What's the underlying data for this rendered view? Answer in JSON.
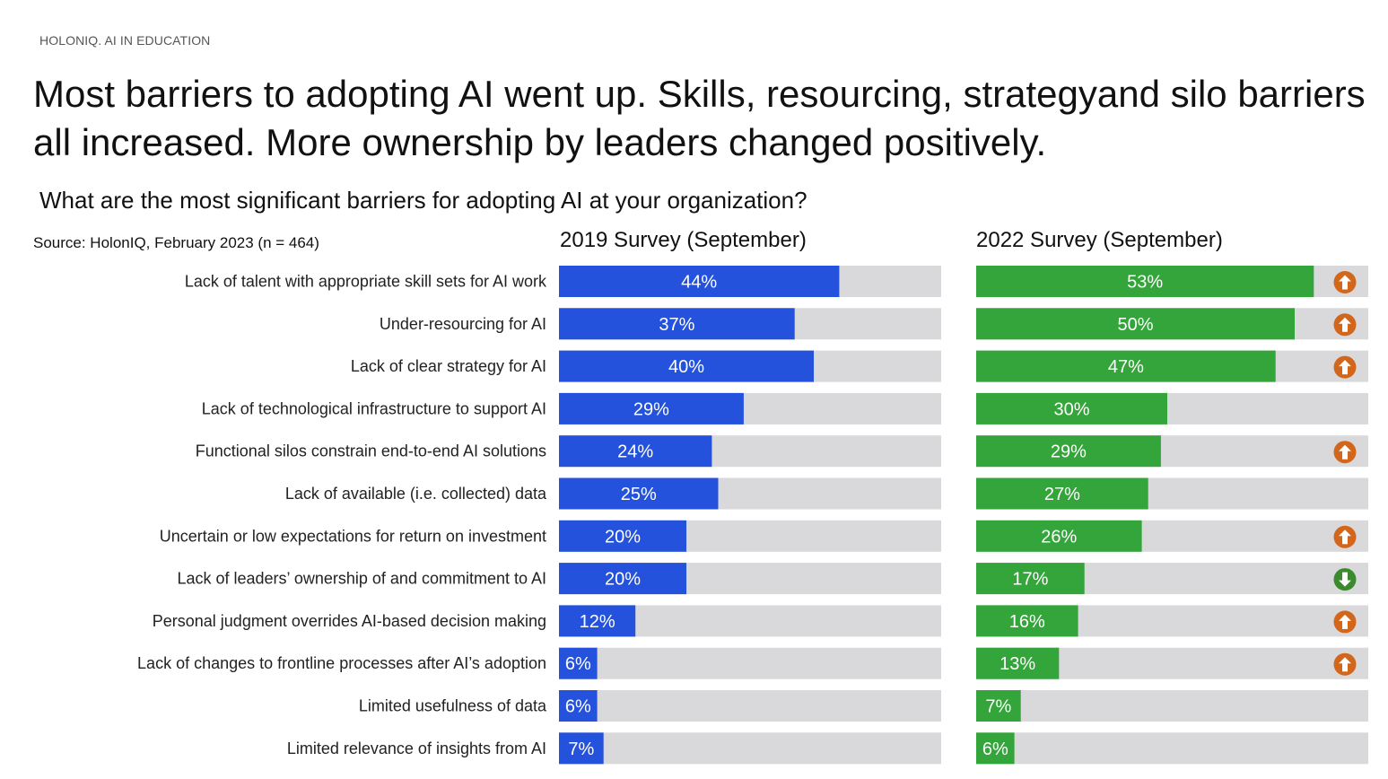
{
  "eyebrow": "HOLONIQ. AI IN EDUCATION",
  "headline": "Most barriers to adopting AI went up. Skills, resourcing, strategyand silo barriers all increased. More ownership by leaders changed positively.",
  "question": "What are the most significant barriers for adopting AI at your organization?",
  "source": "Source: HolonIQ, February 2023 (n = 464)",
  "colors": {
    "series_2019": "#2452dc",
    "series_2022": "#34a53a",
    "track": "#d9d9dc",
    "arrow_up": "#d2671c",
    "arrow_down": "#3b8a2d"
  },
  "chart_data": {
    "type": "bar",
    "orientation": "horizontal",
    "unit": "%",
    "xlim": [
      0,
      100
    ],
    "categories": [
      "Lack of talent with appropriate skill sets for AI work",
      "Under-resourcing for AI",
      "Lack of clear strategy for AI",
      "Lack of technological infrastructure to support AI",
      "Functional silos constrain end-to-end AI solutions",
      "Lack of available (i.e. collected) data",
      "Uncertain or low expectations for return on investment",
      "Lack of leaders’ ownership of and commitment to AI",
      "Personal judgment overrides AI-based decision making",
      "Lack of changes to frontline processes after AI’s adoption",
      "Limited usefulness of data",
      "Limited relevance of insights from AI"
    ],
    "series": [
      {
        "name": "2019 Survey (September)",
        "values": [
          44,
          37,
          40,
          29,
          24,
          25,
          20,
          20,
          12,
          6,
          6,
          7
        ]
      },
      {
        "name": "2022 Survey (September)",
        "values": [
          53,
          50,
          47,
          30,
          29,
          27,
          26,
          17,
          16,
          13,
          7,
          6
        ]
      }
    ],
    "change_indicators": [
      "up",
      "up",
      "up",
      "",
      "up",
      "",
      "up",
      "down",
      "up",
      "up",
      "",
      ""
    ]
  }
}
